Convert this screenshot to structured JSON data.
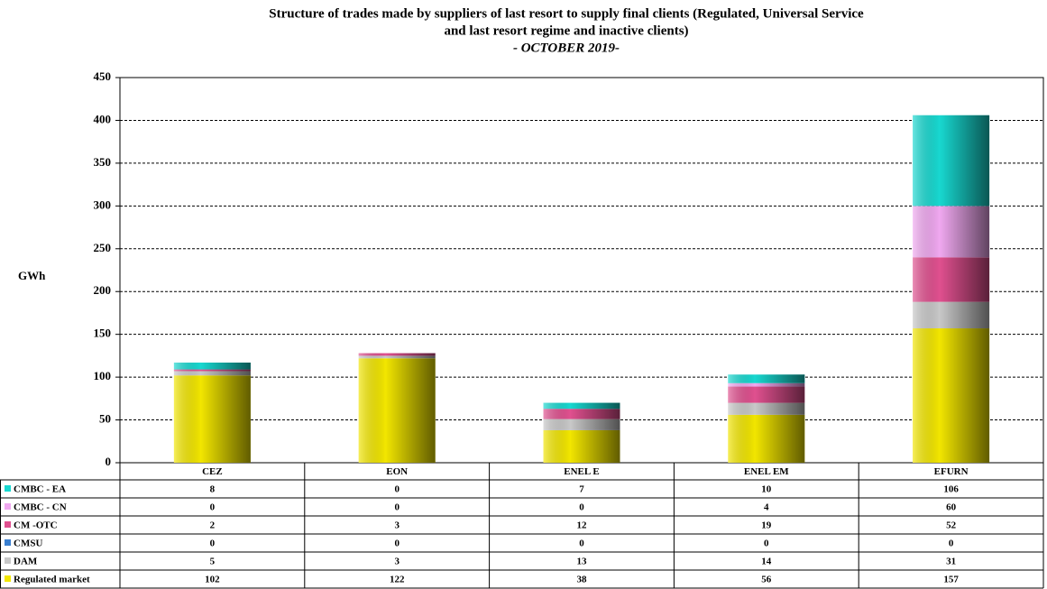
{
  "chart_data": {
    "type": "stacked-bar",
    "title": [
      "Structure of trades made by suppliers of last resort to supply final clients (Regulated, Universal Service",
      "and last resort regime and inactive clients)"
    ],
    "subtitle": "- OCTOBER 2019-",
    "y_label": "GWh",
    "categories": [
      "CEZ",
      "EON",
      "ENEL E",
      "ENEL EM",
      "EFURN"
    ],
    "series": [
      {
        "name": "Regulated market",
        "color": "#f2e600",
        "values": [
          102,
          122,
          38,
          56,
          157
        ]
      },
      {
        "name": "DAM",
        "color": "#c8c8c8",
        "values": [
          5,
          3,
          13,
          14,
          31
        ]
      },
      {
        "name": "CMSU",
        "color": "#3a7fd0",
        "values": [
          0,
          0,
          0,
          0,
          0
        ]
      },
      {
        "name": "CM -OTC",
        "color": "#e0508f",
        "values": [
          2,
          3,
          12,
          19,
          52
        ]
      },
      {
        "name": "CMBC - CN",
        "color": "#f0a8f0",
        "values": [
          0,
          0,
          0,
          4,
          60
        ]
      },
      {
        "name": "CMBC - EA",
        "color": "#18d8d0",
        "values": [
          8,
          0,
          7,
          10,
          106
        ]
      }
    ],
    "ylim": [
      0,
      450
    ],
    "yticks": [
      0,
      50,
      100,
      150,
      200,
      250,
      300,
      350,
      400,
      450
    ],
    "grid": true
  }
}
